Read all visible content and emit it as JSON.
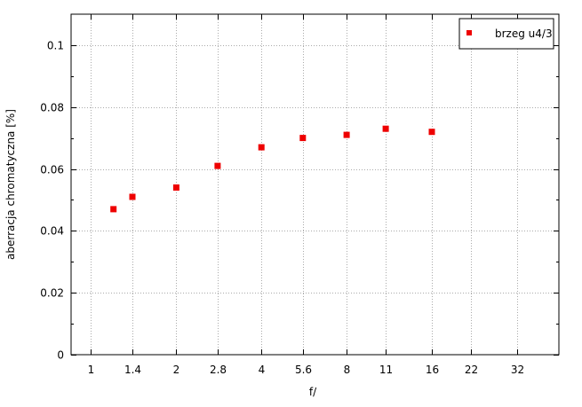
{
  "chart_data": {
    "type": "scatter",
    "x_scale": "log",
    "xlabel": "f/",
    "ylabel": "aberracja chromatyczna [%]",
    "xlim": [
      0.85,
      45
    ],
    "ylim": [
      0,
      0.11
    ],
    "grid": true,
    "legend_position": "top-right",
    "x_ticks": [
      {
        "value": 1,
        "label": "1"
      },
      {
        "value": 1.4,
        "label": "1.4"
      },
      {
        "value": 2,
        "label": "2"
      },
      {
        "value": 2.8,
        "label": "2.8"
      },
      {
        "value": 4,
        "label": "4"
      },
      {
        "value": 5.6,
        "label": "5.6"
      },
      {
        "value": 8,
        "label": "8"
      },
      {
        "value": 11,
        "label": "11"
      },
      {
        "value": 16,
        "label": "16"
      },
      {
        "value": 22,
        "label": "22"
      },
      {
        "value": 32,
        "label": "32"
      }
    ],
    "y_ticks": [
      {
        "value": 0,
        "label": "0"
      },
      {
        "value": 0.02,
        "label": "0.02"
      },
      {
        "value": 0.04,
        "label": "0.04"
      },
      {
        "value": 0.06,
        "label": "0.06"
      },
      {
        "value": 0.08,
        "label": "0.08"
      },
      {
        "value": 0.1,
        "label": "0.1"
      }
    ],
    "series": [
      {
        "name": "brzeg u4/3",
        "color": "#ee0000",
        "marker": "square",
        "points": [
          {
            "x": 1.2,
            "y": 0.047
          },
          {
            "x": 1.4,
            "y": 0.051
          },
          {
            "x": 2,
            "y": 0.054
          },
          {
            "x": 2.8,
            "y": 0.061
          },
          {
            "x": 4,
            "y": 0.067
          },
          {
            "x": 5.6,
            "y": 0.07
          },
          {
            "x": 8,
            "y": 0.071
          },
          {
            "x": 11,
            "y": 0.073
          },
          {
            "x": 16,
            "y": 0.072
          }
        ]
      }
    ]
  }
}
